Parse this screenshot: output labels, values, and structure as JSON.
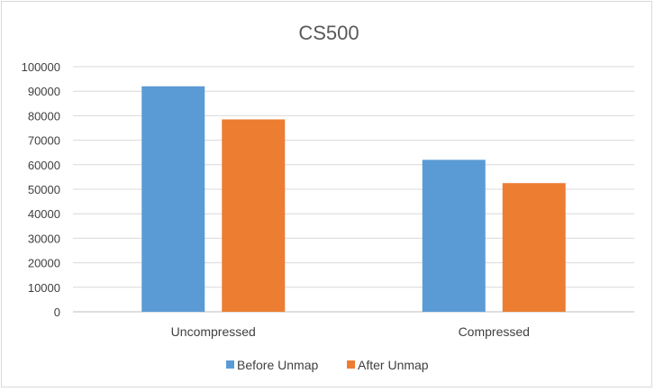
{
  "chart_data": {
    "type": "bar",
    "title": "CS500",
    "xlabel": "",
    "ylabel": "",
    "categories": [
      "Uncompressed",
      "Compressed"
    ],
    "series": [
      {
        "name": "Before Unmap",
        "values": [
          92000,
          62000
        ],
        "color": "#5b9bd5"
      },
      {
        "name": "After Unmap",
        "values": [
          78500,
          52500
        ],
        "color": "#ed7d31"
      }
    ],
    "ylim": [
      0,
      100000
    ],
    "yticks": [
      "0",
      "10000",
      "20000",
      "30000",
      "40000",
      "50000",
      "60000",
      "70000",
      "80000",
      "90000",
      "100000"
    ],
    "grid": true,
    "legend_position": "bottom"
  }
}
